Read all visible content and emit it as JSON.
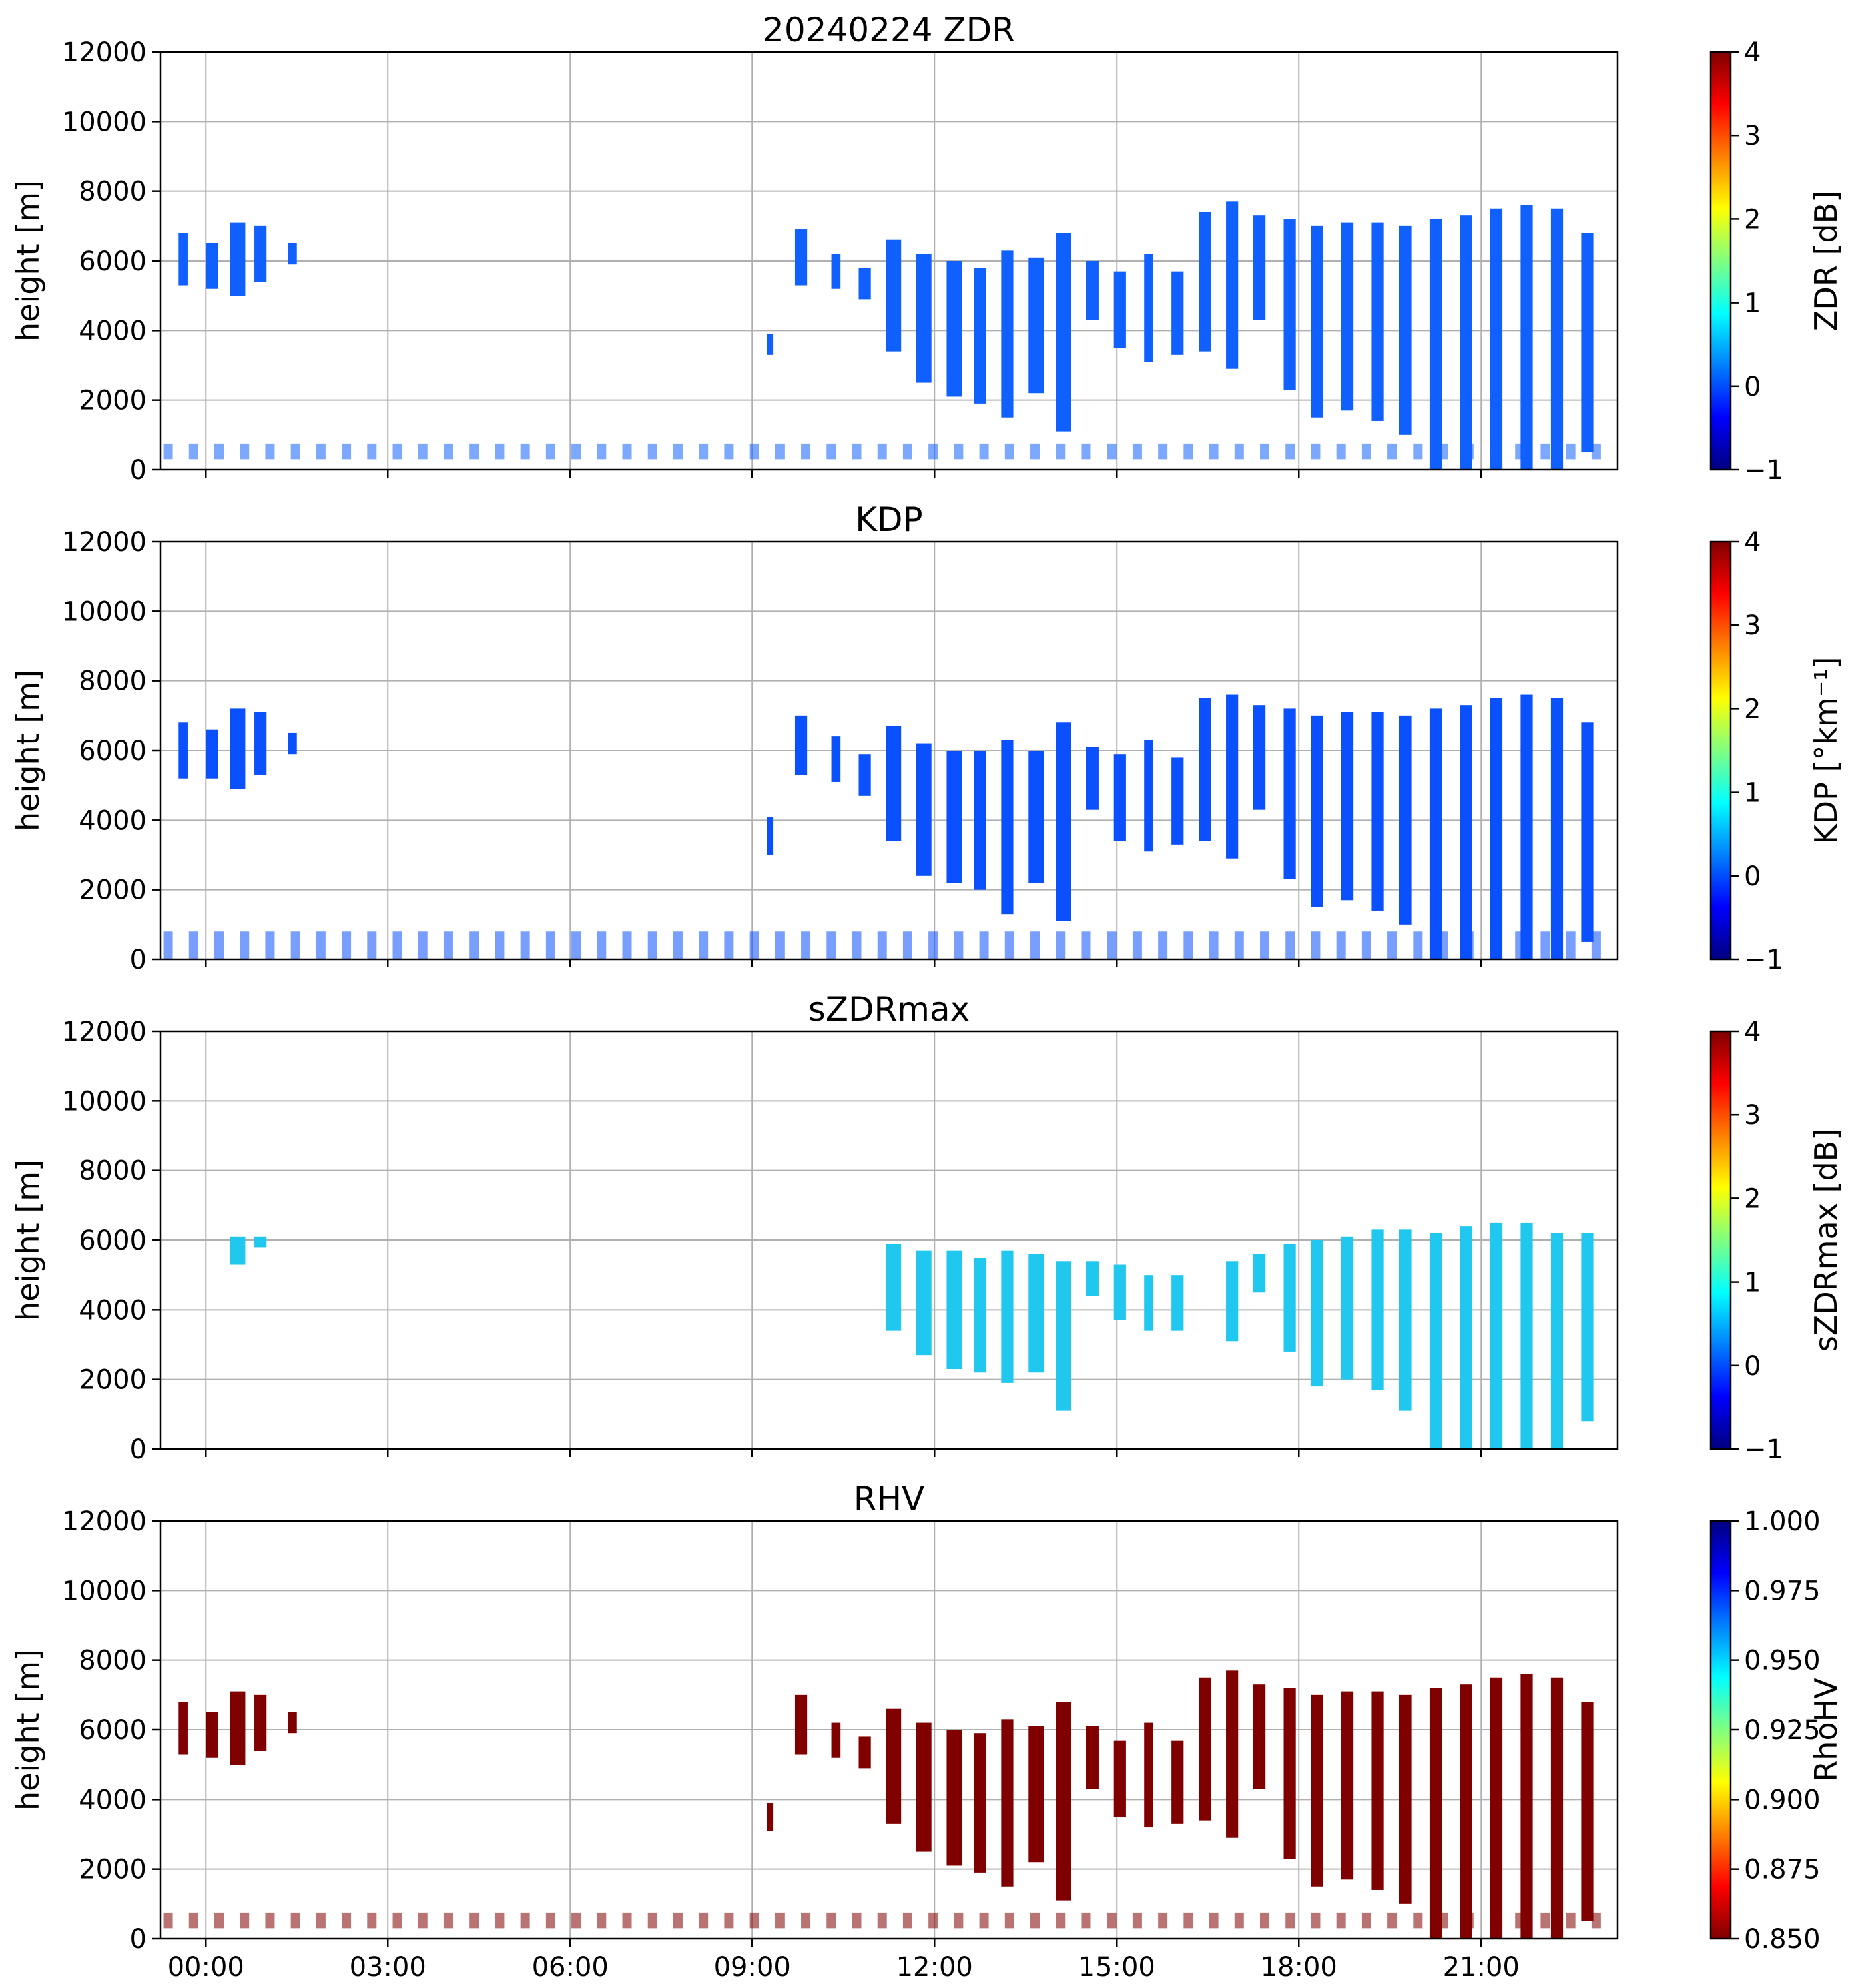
{
  "figure": {
    "date_title": "20240224",
    "xticks": [
      "00:00",
      "03:00",
      "06:00",
      "09:00",
      "12:00",
      "15:00",
      "18:00",
      "21:00"
    ],
    "xtick_hours": [
      0,
      3,
      6,
      9,
      12,
      15,
      18,
      21
    ],
    "xlim_hours": [
      -0.75,
      23.25
    ],
    "colormaps": {
      "jet": [
        "#000080",
        "#0000ff",
        "#0080ff",
        "#00ffff",
        "#80ff80",
        "#ffff00",
        "#ff8000",
        "#ff0000",
        "#800000"
      ]
    }
  },
  "chart_data": [
    {
      "type": "heatmap",
      "title": "20240224 ZDR",
      "ylabel": "height [m]",
      "ylim": [
        0,
        12000
      ],
      "yticks": [
        "0",
        "2000",
        "4000",
        "6000",
        "8000",
        "10000",
        "12000"
      ],
      "ytick_values": [
        0,
        2000,
        4000,
        6000,
        8000,
        10000,
        12000
      ],
      "colorbar": {
        "label": "ZDR [dB]",
        "range": [
          -1,
          4
        ],
        "ticks": [
          "−1",
          "0",
          "1",
          "2",
          "3",
          "4"
        ],
        "tick_values": [
          -1,
          0,
          1,
          2,
          3,
          4
        ],
        "cmap": "jet",
        "reverse": false
      },
      "dominant_value": 0.0,
      "dominant_color": "#1060ff",
      "upper_segments": [
        {
          "t0": -0.45,
          "t1": -0.3,
          "bottom": 5300,
          "top": 6800
        },
        {
          "t0": 0.0,
          "t1": 0.2,
          "bottom": 5200,
          "top": 6500
        },
        {
          "t0": 0.4,
          "t1": 0.65,
          "bottom": 5000,
          "top": 7100
        },
        {
          "t0": 0.8,
          "t1": 1.0,
          "bottom": 5400,
          "top": 7000
        },
        {
          "t0": 1.35,
          "t1": 1.5,
          "bottom": 5900,
          "top": 6500
        },
        {
          "t0": 9.25,
          "t1": 9.35,
          "bottom": 3300,
          "top": 3900
        },
        {
          "t0": 9.7,
          "t1": 9.9,
          "bottom": 5300,
          "top": 6900
        },
        {
          "t0": 10.3,
          "t1": 10.45,
          "bottom": 5200,
          "top": 6200
        },
        {
          "t0": 10.75,
          "t1": 10.95,
          "bottom": 4900,
          "top": 5800
        },
        {
          "t0": 11.2,
          "t1": 11.45,
          "bottom": 3400,
          "top": 6600
        },
        {
          "t0": 11.7,
          "t1": 11.95,
          "bottom": 2500,
          "top": 6200
        },
        {
          "t0": 12.2,
          "t1": 12.45,
          "bottom": 2100,
          "top": 6000
        },
        {
          "t0": 12.65,
          "t1": 12.85,
          "bottom": 1900,
          "top": 5800
        },
        {
          "t0": 13.1,
          "t1": 13.3,
          "bottom": 1500,
          "top": 6300
        },
        {
          "t0": 13.55,
          "t1": 13.8,
          "bottom": 2200,
          "top": 6100
        },
        {
          "t0": 14.0,
          "t1": 14.25,
          "bottom": 1100,
          "top": 6800
        },
        {
          "t0": 14.5,
          "t1": 14.7,
          "bottom": 4300,
          "top": 6000
        },
        {
          "t0": 14.95,
          "t1": 15.15,
          "bottom": 3500,
          "top": 5700
        },
        {
          "t0": 15.45,
          "t1": 15.6,
          "bottom": 3100,
          "top": 6200
        },
        {
          "t0": 15.9,
          "t1": 16.1,
          "bottom": 3300,
          "top": 5700
        },
        {
          "t0": 16.35,
          "t1": 16.55,
          "bottom": 3400,
          "top": 7400
        },
        {
          "t0": 16.8,
          "t1": 17.0,
          "bottom": 2900,
          "top": 7700
        },
        {
          "t0": 17.25,
          "t1": 17.45,
          "bottom": 4300,
          "top": 7300
        },
        {
          "t0": 17.75,
          "t1": 17.95,
          "bottom": 2300,
          "top": 7200
        },
        {
          "t0": 18.2,
          "t1": 18.4,
          "bottom": 1500,
          "top": 7000
        },
        {
          "t0": 18.7,
          "t1": 18.9,
          "bottom": 1700,
          "top": 7100
        },
        {
          "t0": 19.2,
          "t1": 19.4,
          "bottom": 1400,
          "top": 7100
        },
        {
          "t0": 19.65,
          "t1": 19.85,
          "bottom": 1000,
          "top": 7000
        },
        {
          "t0": 20.15,
          "t1": 20.35,
          "bottom": 0,
          "top": 7200
        },
        {
          "t0": 20.65,
          "t1": 20.85,
          "bottom": 0,
          "top": 7300
        },
        {
          "t0": 21.15,
          "t1": 21.35,
          "bottom": 0,
          "top": 7500
        },
        {
          "t0": 21.65,
          "t1": 21.85,
          "bottom": 0,
          "top": 7600
        },
        {
          "t0": 22.15,
          "t1": 22.35,
          "bottom": 0,
          "top": 7500
        },
        {
          "t0": 22.65,
          "t1": 22.85,
          "bottom": 500,
          "top": 6800
        }
      ],
      "low_band": {
        "bottom": 300,
        "top": 750
      }
    },
    {
      "type": "heatmap",
      "title": "KDP",
      "ylabel": "height [m]",
      "ylim": [
        0,
        12000
      ],
      "yticks": [
        "0",
        "2000",
        "4000",
        "6000",
        "8000",
        "10000",
        "12000"
      ],
      "ytick_values": [
        0,
        2000,
        4000,
        6000,
        8000,
        10000,
        12000
      ],
      "colorbar": {
        "label": "KDP [°km⁻¹]",
        "range": [
          -1,
          4
        ],
        "ticks": [
          "−1",
          "0",
          "1",
          "2",
          "3",
          "4"
        ],
        "tick_values": [
          -1,
          0,
          1,
          2,
          3,
          4
        ],
        "cmap": "jet",
        "reverse": false
      },
      "dominant_value": 0.0,
      "dominant_color": "#0a50ff",
      "upper_segments": [
        {
          "t0": -0.45,
          "t1": -0.3,
          "bottom": 5200,
          "top": 6800
        },
        {
          "t0": 0.0,
          "t1": 0.2,
          "bottom": 5200,
          "top": 6600
        },
        {
          "t0": 0.4,
          "t1": 0.65,
          "bottom": 4900,
          "top": 7200
        },
        {
          "t0": 0.8,
          "t1": 1.0,
          "bottom": 5300,
          "top": 7100
        },
        {
          "t0": 1.35,
          "t1": 1.5,
          "bottom": 5900,
          "top": 6500
        },
        {
          "t0": 9.25,
          "t1": 9.35,
          "bottom": 3000,
          "top": 4100
        },
        {
          "t0": 9.7,
          "t1": 9.9,
          "bottom": 5300,
          "top": 7000
        },
        {
          "t0": 10.3,
          "t1": 10.45,
          "bottom": 5100,
          "top": 6400
        },
        {
          "t0": 10.75,
          "t1": 10.95,
          "bottom": 4700,
          "top": 5900
        },
        {
          "t0": 11.2,
          "t1": 11.45,
          "bottom": 3400,
          "top": 6700
        },
        {
          "t0": 11.7,
          "t1": 11.95,
          "bottom": 2400,
          "top": 6200
        },
        {
          "t0": 12.2,
          "t1": 12.45,
          "bottom": 2200,
          "top": 6000
        },
        {
          "t0": 12.65,
          "t1": 12.85,
          "bottom": 2000,
          "top": 6000
        },
        {
          "t0": 13.1,
          "t1": 13.3,
          "bottom": 1300,
          "top": 6300
        },
        {
          "t0": 13.55,
          "t1": 13.8,
          "bottom": 2200,
          "top": 6000
        },
        {
          "t0": 14.0,
          "t1": 14.25,
          "bottom": 1100,
          "top": 6800
        },
        {
          "t0": 14.5,
          "t1": 14.7,
          "bottom": 4300,
          "top": 6100
        },
        {
          "t0": 14.95,
          "t1": 15.15,
          "bottom": 3400,
          "top": 5900
        },
        {
          "t0": 15.45,
          "t1": 15.6,
          "bottom": 3100,
          "top": 6300
        },
        {
          "t0": 15.9,
          "t1": 16.1,
          "bottom": 3300,
          "top": 5800
        },
        {
          "t0": 16.35,
          "t1": 16.55,
          "bottom": 3400,
          "top": 7500
        },
        {
          "t0": 16.8,
          "t1": 17.0,
          "bottom": 2900,
          "top": 7600
        },
        {
          "t0": 17.25,
          "t1": 17.45,
          "bottom": 4300,
          "top": 7300
        },
        {
          "t0": 17.75,
          "t1": 17.95,
          "bottom": 2300,
          "top": 7200
        },
        {
          "t0": 18.2,
          "t1": 18.4,
          "bottom": 1500,
          "top": 7000
        },
        {
          "t0": 18.7,
          "t1": 18.9,
          "bottom": 1700,
          "top": 7100
        },
        {
          "t0": 19.2,
          "t1": 19.4,
          "bottom": 1400,
          "top": 7100
        },
        {
          "t0": 19.65,
          "t1": 19.85,
          "bottom": 1000,
          "top": 7000
        },
        {
          "t0": 20.15,
          "t1": 20.35,
          "bottom": 0,
          "top": 7200
        },
        {
          "t0": 20.65,
          "t1": 20.85,
          "bottom": 0,
          "top": 7300
        },
        {
          "t0": 21.15,
          "t1": 21.35,
          "bottom": 0,
          "top": 7500
        },
        {
          "t0": 21.65,
          "t1": 21.85,
          "bottom": 0,
          "top": 7600
        },
        {
          "t0": 22.15,
          "t1": 22.35,
          "bottom": 0,
          "top": 7500
        },
        {
          "t0": 22.65,
          "t1": 22.85,
          "bottom": 500,
          "top": 6800
        }
      ],
      "low_band": {
        "bottom": 0,
        "top": 800
      }
    },
    {
      "type": "heatmap",
      "title": "sZDRmax",
      "ylabel": "height [m]",
      "ylim": [
        0,
        12000
      ],
      "yticks": [
        "0",
        "2000",
        "4000",
        "6000",
        "8000",
        "10000",
        "12000"
      ],
      "ytick_values": [
        0,
        2000,
        4000,
        6000,
        8000,
        10000,
        12000
      ],
      "colorbar": {
        "label": "sZDRmax [dB]",
        "range": [
          -1,
          4
        ],
        "ticks": [
          "−1",
          "0",
          "1",
          "2",
          "3",
          "4"
        ],
        "tick_values": [
          -1,
          0,
          1,
          2,
          3,
          4
        ],
        "cmap": "jet",
        "reverse": false
      },
      "dominant_value": 0.8,
      "dominant_color": "#20c8f0",
      "upper_segments": [
        {
          "t0": 0.4,
          "t1": 0.65,
          "bottom": 5300,
          "top": 6100
        },
        {
          "t0": 0.8,
          "t1": 1.0,
          "bottom": 5800,
          "top": 6100
        },
        {
          "t0": 11.2,
          "t1": 11.45,
          "bottom": 3400,
          "top": 5900
        },
        {
          "t0": 11.7,
          "t1": 11.95,
          "bottom": 2700,
          "top": 5700
        },
        {
          "t0": 12.2,
          "t1": 12.45,
          "bottom": 2300,
          "top": 5700
        },
        {
          "t0": 12.65,
          "t1": 12.85,
          "bottom": 2200,
          "top": 5500
        },
        {
          "t0": 13.1,
          "t1": 13.3,
          "bottom": 1900,
          "top": 5700
        },
        {
          "t0": 13.55,
          "t1": 13.8,
          "bottom": 2200,
          "top": 5600
        },
        {
          "t0": 14.0,
          "t1": 14.25,
          "bottom": 1100,
          "top": 5400
        },
        {
          "t0": 14.5,
          "t1": 14.7,
          "bottom": 4400,
          "top": 5400
        },
        {
          "t0": 14.95,
          "t1": 15.15,
          "bottom": 3700,
          "top": 5300
        },
        {
          "t0": 15.45,
          "t1": 15.6,
          "bottom": 3400,
          "top": 5000
        },
        {
          "t0": 15.9,
          "t1": 16.1,
          "bottom": 3400,
          "top": 5000
        },
        {
          "t0": 16.8,
          "t1": 17.0,
          "bottom": 3100,
          "top": 5400
        },
        {
          "t0": 17.25,
          "t1": 17.45,
          "bottom": 4500,
          "top": 5600
        },
        {
          "t0": 17.75,
          "t1": 17.95,
          "bottom": 2800,
          "top": 5900
        },
        {
          "t0": 18.2,
          "t1": 18.4,
          "bottom": 1800,
          "top": 6000
        },
        {
          "t0": 18.7,
          "t1": 18.9,
          "bottom": 2000,
          "top": 6100
        },
        {
          "t0": 19.2,
          "t1": 19.4,
          "bottom": 1700,
          "top": 6300
        },
        {
          "t0": 19.65,
          "t1": 19.85,
          "bottom": 1100,
          "top": 6300
        },
        {
          "t0": 20.15,
          "t1": 20.35,
          "bottom": 0,
          "top": 6200
        },
        {
          "t0": 20.65,
          "t1": 20.85,
          "bottom": 0,
          "top": 6400
        },
        {
          "t0": 21.15,
          "t1": 21.35,
          "bottom": 0,
          "top": 6500
        },
        {
          "t0": 21.65,
          "t1": 21.85,
          "bottom": 0,
          "top": 6500
        },
        {
          "t0": 22.15,
          "t1": 22.35,
          "bottom": 0,
          "top": 6200
        },
        {
          "t0": 22.65,
          "t1": 22.85,
          "bottom": 800,
          "top": 6200
        }
      ],
      "low_band": null
    },
    {
      "type": "heatmap",
      "title": "RHV",
      "ylabel": "height [m]",
      "ylim": [
        0,
        12000
      ],
      "yticks": [
        "0",
        "2000",
        "4000",
        "6000",
        "8000",
        "10000",
        "12000"
      ],
      "ytick_values": [
        0,
        2000,
        4000,
        6000,
        8000,
        10000,
        12000
      ],
      "colorbar": {
        "label": "RhoHV",
        "range": [
          0.85,
          1.0
        ],
        "ticks": [
          "0.850",
          "0.875",
          "0.900",
          "0.925",
          "0.950",
          "0.975",
          "1.000"
        ],
        "tick_values": [
          0.85,
          0.875,
          0.9,
          0.925,
          0.95,
          0.975,
          1.0
        ],
        "cmap": "jet",
        "reverse": true
      },
      "dominant_value": 0.85,
      "dominant_color": "#800000",
      "upper_segments": [
        {
          "t0": -0.45,
          "t1": -0.3,
          "bottom": 5300,
          "top": 6800
        },
        {
          "t0": 0.0,
          "t1": 0.2,
          "bottom": 5200,
          "top": 6500
        },
        {
          "t0": 0.4,
          "t1": 0.65,
          "bottom": 5000,
          "top": 7100
        },
        {
          "t0": 0.8,
          "t1": 1.0,
          "bottom": 5400,
          "top": 7000
        },
        {
          "t0": 1.35,
          "t1": 1.5,
          "bottom": 5900,
          "top": 6500
        },
        {
          "t0": 9.25,
          "t1": 9.35,
          "bottom": 3100,
          "top": 3900
        },
        {
          "t0": 9.7,
          "t1": 9.9,
          "bottom": 5300,
          "top": 7000
        },
        {
          "t0": 10.3,
          "t1": 10.45,
          "bottom": 5200,
          "top": 6200
        },
        {
          "t0": 10.75,
          "t1": 10.95,
          "bottom": 4900,
          "top": 5800
        },
        {
          "t0": 11.2,
          "t1": 11.45,
          "bottom": 3300,
          "top": 6600
        },
        {
          "t0": 11.7,
          "t1": 11.95,
          "bottom": 2500,
          "top": 6200
        },
        {
          "t0": 12.2,
          "t1": 12.45,
          "bottom": 2100,
          "top": 6000
        },
        {
          "t0": 12.65,
          "t1": 12.85,
          "bottom": 1900,
          "top": 5900
        },
        {
          "t0": 13.1,
          "t1": 13.3,
          "bottom": 1500,
          "top": 6300
        },
        {
          "t0": 13.55,
          "t1": 13.8,
          "bottom": 2200,
          "top": 6100
        },
        {
          "t0": 14.0,
          "t1": 14.25,
          "bottom": 1100,
          "top": 6800
        },
        {
          "t0": 14.5,
          "t1": 14.7,
          "bottom": 4300,
          "top": 6100
        },
        {
          "t0": 14.95,
          "t1": 15.15,
          "bottom": 3500,
          "top": 5700
        },
        {
          "t0": 15.45,
          "t1": 15.6,
          "bottom": 3200,
          "top": 6200
        },
        {
          "t0": 15.9,
          "t1": 16.1,
          "bottom": 3300,
          "top": 5700
        },
        {
          "t0": 16.35,
          "t1": 16.55,
          "bottom": 3400,
          "top": 7500
        },
        {
          "t0": 16.8,
          "t1": 17.0,
          "bottom": 2900,
          "top": 7700
        },
        {
          "t0": 17.25,
          "t1": 17.45,
          "bottom": 4300,
          "top": 7300
        },
        {
          "t0": 17.75,
          "t1": 17.95,
          "bottom": 2300,
          "top": 7200
        },
        {
          "t0": 18.2,
          "t1": 18.4,
          "bottom": 1500,
          "top": 7000
        },
        {
          "t0": 18.7,
          "t1": 18.9,
          "bottom": 1700,
          "top": 7100
        },
        {
          "t0": 19.2,
          "t1": 19.4,
          "bottom": 1400,
          "top": 7100
        },
        {
          "t0": 19.65,
          "t1": 19.85,
          "bottom": 1000,
          "top": 7000
        },
        {
          "t0": 20.15,
          "t1": 20.35,
          "bottom": 0,
          "top": 7200
        },
        {
          "t0": 20.65,
          "t1": 20.85,
          "bottom": 0,
          "top": 7300
        },
        {
          "t0": 21.15,
          "t1": 21.35,
          "bottom": 0,
          "top": 7500
        },
        {
          "t0": 21.65,
          "t1": 21.85,
          "bottom": 0,
          "top": 7600
        },
        {
          "t0": 22.15,
          "t1": 22.35,
          "bottom": 0,
          "top": 7500
        },
        {
          "t0": 22.65,
          "t1": 22.85,
          "bottom": 500,
          "top": 6800
        }
      ],
      "low_band": {
        "bottom": 300,
        "top": 750
      }
    }
  ]
}
